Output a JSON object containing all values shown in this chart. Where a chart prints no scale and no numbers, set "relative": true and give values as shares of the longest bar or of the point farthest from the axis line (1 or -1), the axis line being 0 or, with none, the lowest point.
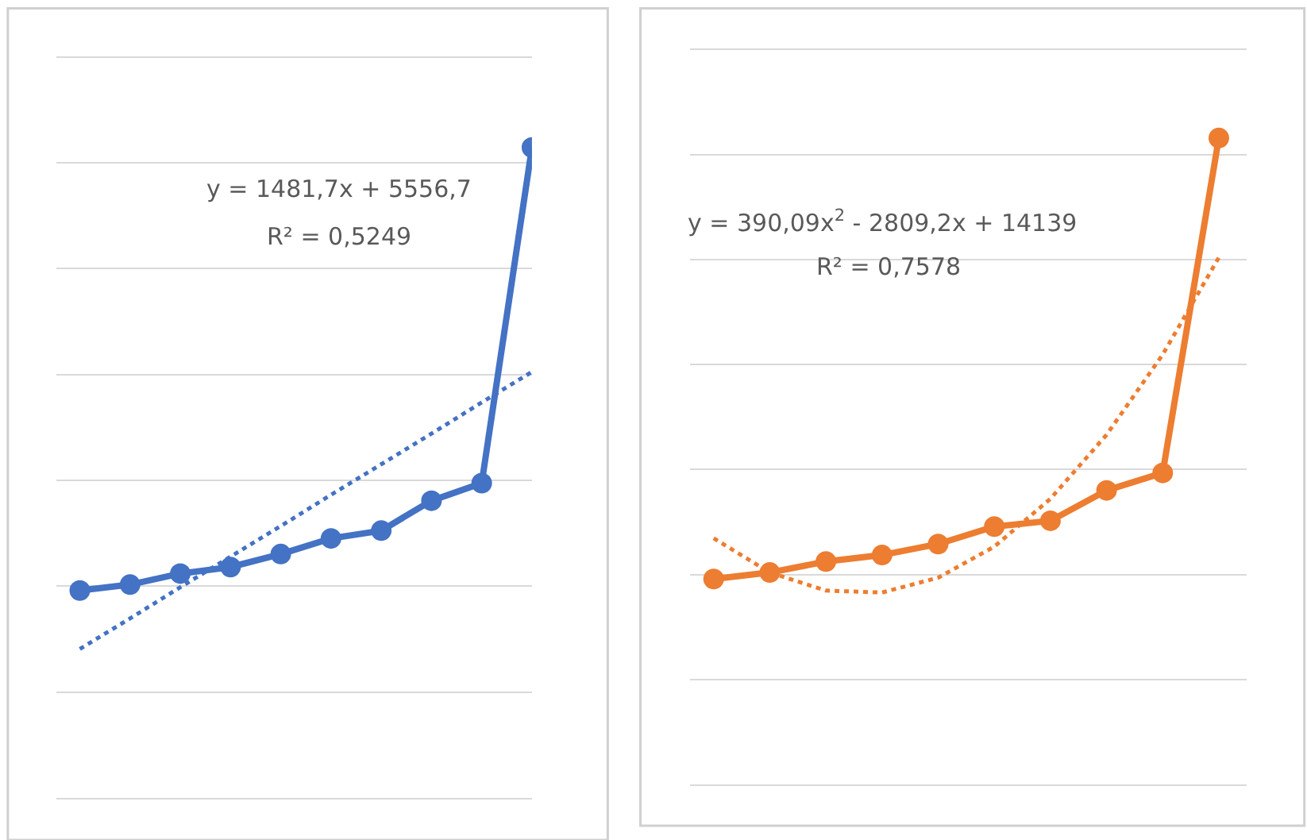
{
  "chart_data": [
    {
      "type": "line",
      "relative": true,
      "categories": [
        null,
        null,
        null,
        null,
        null,
        null,
        null,
        null,
        null,
        null
      ],
      "grid": "y",
      "marker": "circle",
      "series": [
        {
          "color": "#4472c4",
          "values": [
            0.319,
            0.328,
            0.345,
            0.355,
            0.375,
            0.399,
            0.411,
            0.457,
            0.484,
            1
          ]
        },
        {
          "type": "line",
          "color": "#4472c4",
          "line_style": "dotted",
          "marker": "none",
          "values": [
            0.229,
            0.276,
            0.324,
            0.371,
            0.418,
            0.466,
            0.513,
            0.56,
            0.608,
            0.655
          ]
        }
      ],
      "annotations": [
        "y = 1481,7x + 5556,7",
        "R² = 0,5249"
      ]
    },
    {
      "type": "line",
      "relative": true,
      "categories": [
        null,
        null,
        null,
        null,
        null,
        null,
        null,
        null,
        null,
        null
      ],
      "grid": "y",
      "marker": "circle",
      "series": [
        {
          "color": "#ed7d31",
          "values": [
            0.318,
            0.328,
            0.345,
            0.355,
            0.372,
            0.399,
            0.408,
            0.455,
            0.482,
            1
          ]
        },
        {
          "type": "line",
          "color": "#ed7d31",
          "line_style": "dotted",
          "marker": "none",
          "values": [
            0.381,
            0.328,
            0.3,
            0.297,
            0.32,
            0.368,
            0.442,
            0.541,
            0.665,
            0.815
          ]
        }
      ],
      "annotations": [
        "y = 390,09x$^{2}$ - 2809,2x + 14139",
        "R² = 0,7578"
      ]
    }
  ]
}
